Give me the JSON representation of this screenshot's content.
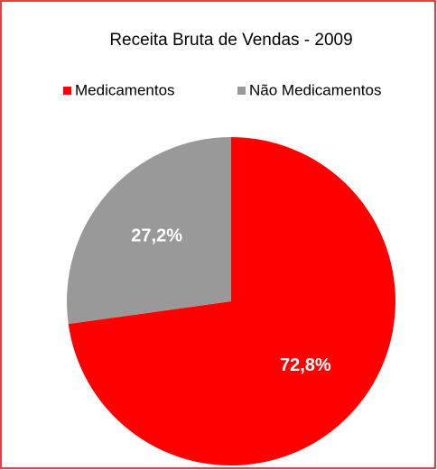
{
  "chart_data": {
    "type": "pie",
    "title": "Receita Bruta de Vendas - 2009",
    "categories": [
      "Medicamentos",
      "Não Medicamentos"
    ],
    "values": [
      72.8,
      27.2
    ],
    "value_labels": [
      "72,8%",
      "27,2%"
    ],
    "colors": [
      "#ff0000",
      "#999999"
    ],
    "legend": "top"
  }
}
